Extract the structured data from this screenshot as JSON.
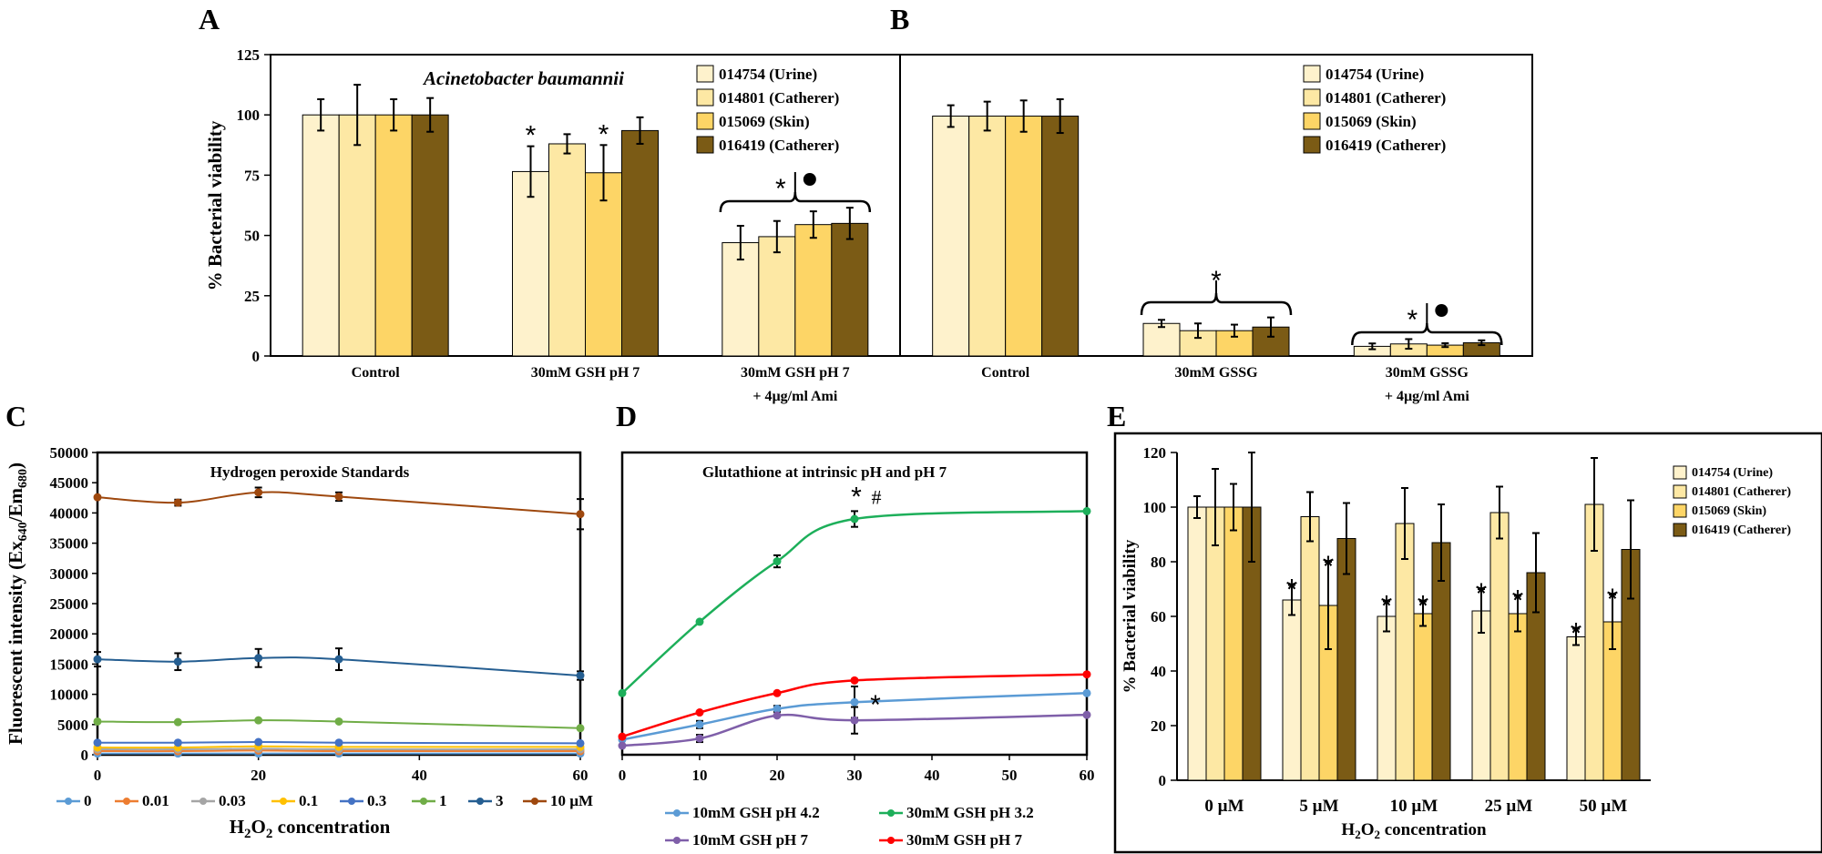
{
  "panels": {
    "A": "A",
    "B": "B",
    "C": "C",
    "D": "D",
    "E": "E"
  },
  "colors": {
    "c1": "#fef2cc",
    "c2": "#fde8a4",
    "c3": "#fdd566",
    "c4": "#7b5b15"
  },
  "chart_data": [
    {
      "id": "A",
      "type": "bar",
      "title": "Acinetobacter baumannii",
      "ylabel": "% Bacterial viability",
      "xlabel": "",
      "ylim": [
        0,
        125
      ],
      "yticks": [
        "0",
        "25",
        "50",
        "75",
        "100",
        "125"
      ],
      "categories": [
        "Control",
        "30mM GSH pH 7",
        "30mM GSH pH 7"
      ],
      "category_sublabels": [
        "",
        "",
        "+ 4µg/ml Ami"
      ],
      "series": [
        {
          "name": "014754 (Urine)",
          "values": [
            100,
            76.5,
            47
          ],
          "errors": [
            6.5,
            10.5,
            7
          ]
        },
        {
          "name": "014801 (Catherer)",
          "values": [
            100,
            88,
            49.5
          ],
          "errors": [
            12.5,
            4,
            6.5
          ]
        },
        {
          "name": "015069 (Skin)",
          "values": [
            100,
            76,
            54.5
          ],
          "errors": [
            6.5,
            11.5,
            5.5
          ]
        },
        {
          "name": "016419 (Catherer)",
          "values": [
            100,
            93.5,
            55
          ],
          "errors": [
            7,
            5.5,
            6.5
          ]
        }
      ],
      "annotations": [
        {
          "cat": 1,
          "series": 0,
          "text": "*"
        },
        {
          "cat": 1,
          "series": 2,
          "text": "*"
        },
        {
          "cat": 2,
          "group": true,
          "text": "* | ●"
        }
      ]
    },
    {
      "id": "B",
      "type": "bar",
      "ylim": [
        0,
        125
      ],
      "categories": [
        "Control",
        "30mM GSSG",
        "30mM GSSG"
      ],
      "category_sublabels": [
        "",
        "",
        "+ 4µg/ml Ami"
      ],
      "series": [
        {
          "name": "014754 (Urine)",
          "values": [
            99.5,
            13.5,
            4
          ],
          "errors": [
            4.5,
            1.5,
            1.2
          ]
        },
        {
          "name": "014801 (Catherer)",
          "values": [
            99.5,
            10.5,
            5
          ],
          "errors": [
            6,
            3,
            2
          ]
        },
        {
          "name": "015069 (Skin)",
          "values": [
            99.5,
            10.5,
            4.5
          ],
          "errors": [
            6.5,
            2.5,
            0.8
          ]
        },
        {
          "name": "016419 (Catherer)",
          "values": [
            99.5,
            12,
            5.5
          ],
          "errors": [
            7,
            4,
            1
          ]
        }
      ],
      "annotations": [
        {
          "cat": 1,
          "group": true,
          "text": "*"
        },
        {
          "cat": 2,
          "group": true,
          "text": "* | ●"
        }
      ]
    },
    {
      "id": "C",
      "type": "line",
      "title": "Hydrogen peroxide Standards",
      "ylabel": "Fluorescent intensity (Ex640/Em680)",
      "ylabel_main": "Fluorescent intensity (Ex",
      "ylabel_sub1": "640",
      "ylabel_mid": "/Em",
      "ylabel_sub2": "680",
      "ylabel_end": ")",
      "xlabel": "H2O2 concentration",
      "xlabel_main": "H",
      "xlabel_sub1": "2",
      "xlabel_mid": "O",
      "xlabel_sub2": "2",
      "xlabel_end": " concentration",
      "xlim": [
        0,
        60
      ],
      "ylim": [
        0,
        50000
      ],
      "xticks": [
        "0",
        "20",
        "40",
        "60"
      ],
      "yticks": [
        "0",
        "5000",
        "10000",
        "15000",
        "20000",
        "25000",
        "30000",
        "35000",
        "40000",
        "45000",
        "50000"
      ],
      "x": [
        0,
        10,
        20,
        30,
        60
      ],
      "series": [
        {
          "name": "0",
          "color": "#5b9bd5",
          "values": [
            200,
            200,
            200,
            200,
            200
          ],
          "errors": [
            0,
            0,
            0,
            0,
            0
          ]
        },
        {
          "name": "0.01",
          "color": "#ed7d31",
          "values": [
            600,
            600,
            700,
            600,
            600
          ],
          "errors": [
            0,
            0,
            0,
            0,
            0
          ]
        },
        {
          "name": "0.03",
          "color": "#a5a5a5",
          "values": [
            900,
            900,
            1000,
            900,
            900
          ],
          "errors": [
            0,
            0,
            0,
            0,
            0
          ]
        },
        {
          "name": "0.1",
          "color": "#ffc000",
          "values": [
            1200,
            1200,
            1400,
            1300,
            1300
          ],
          "errors": [
            0,
            0,
            0,
            0,
            0
          ]
        },
        {
          "name": "0.3",
          "color": "#4472c4",
          "values": [
            2000,
            2000,
            2100,
            2000,
            1900
          ],
          "errors": [
            0,
            0,
            0,
            0,
            0
          ]
        },
        {
          "name": "1",
          "color": "#70ad47",
          "values": [
            5500,
            5400,
            5700,
            5500,
            4400
          ],
          "errors": [
            0,
            0,
            0,
            0,
            0
          ]
        },
        {
          "name": "3",
          "color": "#255e91",
          "values": [
            15800,
            15400,
            16000,
            15800,
            13100
          ],
          "errors": [
            1200,
            1400,
            1500,
            1800,
            700
          ]
        },
        {
          "name": "10 µM",
          "color": "#9e480e",
          "values": [
            42600,
            41700,
            43400,
            42700,
            39800
          ],
          "errors": [
            0,
            500,
            800,
            700,
            2500
          ]
        }
      ]
    },
    {
      "id": "D",
      "type": "line",
      "title": "Glutathione at intrinsic pH and pH 7",
      "xlim": [
        0,
        60
      ],
      "ylim": [
        0,
        50000
      ],
      "xticks": [
        "0",
        "10",
        "20",
        "30",
        "40",
        "50",
        "60"
      ],
      "x": [
        0,
        10,
        20,
        30,
        60
      ],
      "series": [
        {
          "name": "10mM GSH pH 4.2",
          "color": "#5b9bd5",
          "values": [
            2500,
            5000,
            7600,
            8700,
            10200
          ],
          "errors": [
            0,
            600,
            500,
            2600,
            0
          ]
        },
        {
          "name": "30mM GSH pH 3.2",
          "color": "#1daf5a",
          "values": [
            10200,
            22000,
            32000,
            39000,
            40300
          ],
          "errors": [
            0,
            0,
            1000,
            1300,
            0
          ]
        },
        {
          "name": "10mM GSH pH 7",
          "color": "#7f5fa9",
          "values": [
            1500,
            2700,
            6500,
            5700,
            6600
          ],
          "errors": [
            0,
            600,
            0,
            2200,
            0
          ]
        },
        {
          "name": "30mM GSH pH 7",
          "color": "#ff0000",
          "values": [
            3000,
            7000,
            10200,
            12300,
            13300
          ],
          "errors": [
            0,
            0,
            0,
            0,
            0
          ]
        }
      ],
      "annotations": [
        {
          "x": 30,
          "text": "* #"
        },
        {
          "x": 30,
          "text": "*",
          "series": 0
        }
      ]
    },
    {
      "id": "E",
      "type": "bar",
      "ylabel": "% Bacterial viability",
      "xlabel": "H2O2 concentration",
      "xlabel_main": "H",
      "xlabel_sub1": "2",
      "xlabel_mid": "O",
      "xlabel_sub2": "2",
      "xlabel_end": " concentration",
      "ylim": [
        0,
        120
      ],
      "yticks": [
        "0",
        "20",
        "40",
        "60",
        "80",
        "100",
        "120"
      ],
      "categories": [
        "0 µM",
        "5 µM",
        "10 µM",
        "25 µM",
        "50 µM"
      ],
      "series": [
        {
          "name": "014754 (Urine)",
          "values": [
            100,
            66,
            60,
            62,
            52.5
          ],
          "errors": [
            4,
            5.5,
            5.5,
            8,
            3
          ]
        },
        {
          "name": "014801 (Catherer)",
          "values": [
            100,
            96.5,
            94,
            98,
            101
          ],
          "errors": [
            14,
            9,
            13,
            9.5,
            17
          ]
        },
        {
          "name": "015069 (Skin)",
          "values": [
            100,
            64,
            61,
            61,
            58
          ],
          "errors": [
            8.5,
            16,
            4.5,
            6.5,
            10
          ]
        },
        {
          "name": "016419 (Catherer)",
          "values": [
            100,
            88.5,
            87,
            76,
            84.5
          ],
          "errors": [
            20,
            13,
            14,
            14.5,
            18
          ]
        }
      ],
      "annotations": [
        {
          "cat": 1,
          "series": 0,
          "text": "*"
        },
        {
          "cat": 1,
          "series": 2,
          "text": "*"
        },
        {
          "cat": 2,
          "series": 0,
          "text": "*"
        },
        {
          "cat": 2,
          "series": 2,
          "text": "*"
        },
        {
          "cat": 3,
          "series": 0,
          "text": "*"
        },
        {
          "cat": 3,
          "series": 2,
          "text": "*"
        },
        {
          "cat": 4,
          "series": 0,
          "text": "*"
        },
        {
          "cat": 4,
          "series": 2,
          "text": "*"
        }
      ]
    }
  ]
}
